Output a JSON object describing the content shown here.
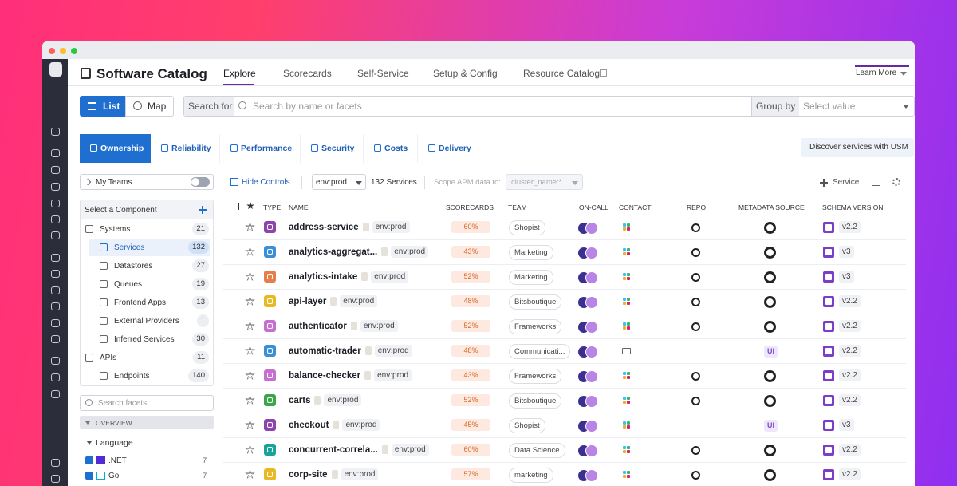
{
  "header": {
    "title": "Software Catalog",
    "tabs": [
      "Explore",
      "Scorecards",
      "Self-Service",
      "Setup & Config",
      "Resource Catalog"
    ],
    "learn_more": "Learn More"
  },
  "view_toggle": [
    "List",
    "Map"
  ],
  "search": {
    "label": "Search for",
    "placeholder": "Search by name or facets",
    "group_label": "Group by",
    "group_placeholder": "Select value"
  },
  "category_tabs": [
    "Ownership",
    "Reliability",
    "Performance",
    "Security",
    "Costs",
    "Delivery"
  ],
  "discover_button": "Discover services with USM",
  "sidebar": {
    "my_teams": "My Teams",
    "component_title": "Select a Component",
    "components": [
      {
        "label": "Systems",
        "count": 21,
        "level": 0
      },
      {
        "label": "Services",
        "count": 132,
        "level": 1,
        "selected": true
      },
      {
        "label": "Datastores",
        "count": 27,
        "level": 1
      },
      {
        "label": "Queues",
        "count": 19,
        "level": 1
      },
      {
        "label": "Frontend Apps",
        "count": 13,
        "level": 1
      },
      {
        "label": "External Providers",
        "count": 1,
        "level": 1
      },
      {
        "label": "Inferred Services",
        "count": 30,
        "level": 1
      },
      {
        "label": "APIs",
        "count": 11,
        "level": 0
      },
      {
        "label": "Endpoints",
        "count": 140,
        "level": 1
      }
    ],
    "facet_search": "Search facets",
    "overview": "OVERVIEW",
    "facet_group": "Language",
    "facets": [
      {
        "label": ".NET",
        "count": 7
      },
      {
        "label": "Go",
        "count": 7
      }
    ]
  },
  "toolbar": {
    "hide_controls": "Hide Controls",
    "env": "env:prod",
    "count": "132 Services",
    "scope_label": "Scope APM data to:",
    "scope_value": "cluster_name:*",
    "add": "Service"
  },
  "table": {
    "columns": [
      "TYPE",
      "NAME",
      "SCORECARDS",
      "TEAM",
      "ON-CALL",
      "CONTACT",
      "REPO",
      "METADATA SOURCE",
      "SCHEMA VERSION"
    ],
    "rows": [
      {
        "name": "address-service",
        "env": "env:prod",
        "score": "60%",
        "team": "Shopist",
        "version": "v2.2",
        "color": "#8e44ad",
        "contact": "slack",
        "repo": true
      },
      {
        "name": "analytics-aggregat...",
        "env": "env:prod",
        "score": "43%",
        "team": "Marketing",
        "version": "v3",
        "color": "#3a8fd6",
        "contact": "slack",
        "repo": true
      },
      {
        "name": "analytics-intake",
        "env": "env:prod",
        "score": "52%",
        "team": "Marketing",
        "version": "v3",
        "color": "#e67e4a",
        "contact": "slack",
        "repo": true
      },
      {
        "name": "api-layer",
        "env": "env:prod",
        "score": "48%",
        "team": "Bitsboutique",
        "version": "v2.2",
        "color": "#e8b923",
        "contact": "slack",
        "repo": true
      },
      {
        "name": "authenticator",
        "env": "env:prod",
        "score": "52%",
        "team": "Frameworks",
        "version": "v2.2",
        "color": "#c76fd1",
        "contact": "slack",
        "repo": true
      },
      {
        "name": "automatic-trader",
        "env": "env:prod",
        "score": "48%",
        "team": "Communicati...",
        "version": "v2.2",
        "color": "#3a8fd6",
        "contact": "mail",
        "repo": false,
        "metadata": "UI"
      },
      {
        "name": "balance-checker",
        "env": "env:prod",
        "score": "43%",
        "team": "Frameworks",
        "version": "v2.2",
        "color": "#c76fd1",
        "contact": "slack",
        "repo": true
      },
      {
        "name": "carts",
        "env": "env:prod",
        "score": "52%",
        "team": "Bitsboutique",
        "version": "v2.2",
        "color": "#3aa64a",
        "contact": "slack",
        "repo": true
      },
      {
        "name": "checkout",
        "env": "env:prod",
        "score": "45%",
        "team": "Shopist",
        "version": "v3",
        "color": "#8e44ad",
        "contact": "slack",
        "repo": false,
        "metadata": "UI"
      },
      {
        "name": "concurrent-correla...",
        "env": "env:prod",
        "score": "60%",
        "team": "Data Science",
        "version": "v2.2",
        "color": "#1aa39a",
        "contact": "slack",
        "repo": true
      },
      {
        "name": "corp-site",
        "env": "env:prod",
        "score": "57%",
        "team": "marketing",
        "version": "v2.2",
        "color": "#e8b923",
        "contact": "slack",
        "repo": true
      }
    ]
  }
}
